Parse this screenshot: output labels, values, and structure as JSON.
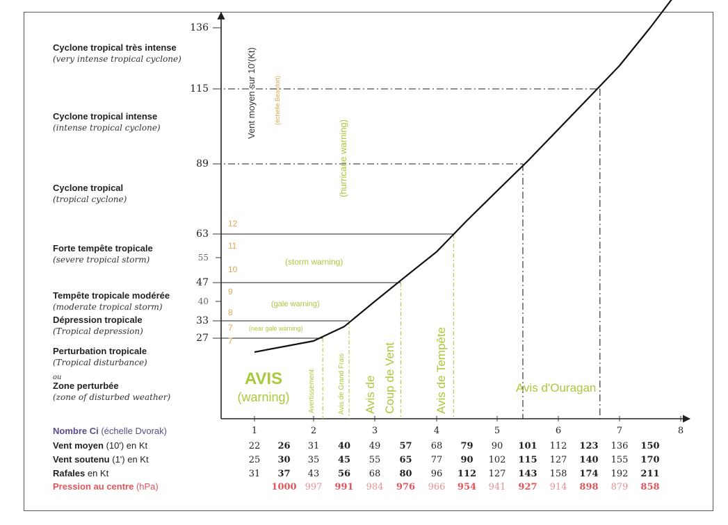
{
  "chart_data": {
    "type": "line",
    "title": "",
    "ylabel": "Vent moyen sur 10'(Kt)",
    "ylabel_secondary": "(échelle Beaufort)",
    "xlabel": "Nombre Ci (échelle Dvorak)",
    "xlim": [
      1,
      8
    ],
    "ylim": [
      22,
      136
    ],
    "x_ticks": [
      "1",
      "2",
      "3",
      "4",
      "5",
      "6",
      "7",
      "8"
    ],
    "y_ticks": [
      {
        "value": 136,
        "label": "136"
      },
      {
        "value": 115,
        "label": "115"
      },
      {
        "value": 89,
        "label": "89"
      },
      {
        "value": 63,
        "label": "63"
      },
      {
        "value": 55,
        "label": "55"
      },
      {
        "value": 47,
        "label": "47"
      },
      {
        "value": 40,
        "label": "40"
      },
      {
        "value": 33,
        "label": "33"
      },
      {
        "value": 27,
        "label": "27"
      }
    ],
    "series": [
      {
        "x": [
          1.0,
          1.5,
          2.0,
          2.5,
          3.0,
          3.5,
          4.0,
          4.5,
          5.0,
          5.5,
          6.0,
          6.5,
          7.0,
          7.5,
          8.0
        ],
        "values": [
          22,
          24,
          26,
          31,
          40,
          49,
          57,
          68,
          79,
          90,
          101,
          112,
          123,
          136,
          150
        ]
      }
    ],
    "beaufort": [
      {
        "value": 12,
        "label": "12"
      },
      {
        "value": 11,
        "label": "11"
      },
      {
        "value": 10,
        "label": "10"
      },
      {
        "value": 9,
        "label": "9"
      },
      {
        "value": 8,
        "label": "8"
      },
      {
        "value": 7,
        "label": "7"
      },
      {
        "value": 7,
        "label": "7"
      }
    ],
    "thresholds": [
      {
        "y": 27,
        "x": 2.15,
        "style": "solid"
      },
      {
        "y": 33,
        "x": 2.58,
        "style": "solid"
      },
      {
        "y": 47,
        "x": 3.42,
        "style": "solid"
      },
      {
        "y": 63,
        "x": 4.28,
        "style": "solid"
      },
      {
        "y": 89,
        "x": 5.42,
        "style": "dashdot"
      },
      {
        "y": 115,
        "x": 6.68,
        "style": "dashdot"
      }
    ],
    "categories": [
      {
        "name": "Cyclone tropical très intense",
        "english": "(very intense tropical cyclone)"
      },
      {
        "name": "Cyclone tropical intense",
        "english": "(intense tropical cyclone)"
      },
      {
        "name": "Cyclone tropical",
        "english": "(tropical cyclone)"
      },
      {
        "name": "Forte tempête tropicale",
        "english": "(severe tropical storm)"
      },
      {
        "name": "Tempête tropicale modérée",
        "english": "(moderate tropical storm)"
      },
      {
        "name": "Dépression tropicale",
        "english": "(Tropical depression)"
      },
      {
        "name": "Perturbation tropicale",
        "english": "(Tropical disturbance)"
      },
      {
        "name": "Zone perturbée",
        "english": "(zone of disturbed weather)"
      }
    ],
    "connector": "ou",
    "warning_labels": {
      "hurricane": "(hurricane warning)",
      "storm": "(storm warning)",
      "gale": "(gale warning)",
      "near_gale": "(near gale warning)"
    },
    "avis": {
      "title": "AVIS",
      "subtitle": "(warning)",
      "avertissement": "Avertissement",
      "grand_frais": "Avis de Grand Frais",
      "coup_de_vent_1": "Avis de",
      "coup_de_vent_2": "Coup de Vent",
      "tempete": "Avis de Tempête",
      "ouragan": "Avis d'Ouragan"
    },
    "table": {
      "ci_label_bold": "Nombre Ci",
      "ci_label_rest": " (échelle Dvorak)",
      "row_labels": [
        {
          "bold": "Vent moyen",
          "rest": " (10') en Kt"
        },
        {
          "bold": "Vent soutenu",
          "rest": " (1') en Kt"
        },
        {
          "bold": "Rafales",
          "rest": " en Kt"
        },
        {
          "bold": "Pression au centre",
          "rest": " (hPa)"
        }
      ],
      "rows": [
        [
          "22",
          "26",
          "31",
          "40",
          "49",
          "57",
          "68",
          "79",
          "90",
          "101",
          "112",
          "123",
          "136",
          "150"
        ],
        [
          "25",
          "30",
          "35",
          "45",
          "55",
          "65",
          "77",
          "90",
          "102",
          "115",
          "127",
          "140",
          "155",
          "170"
        ],
        [
          "31",
          "37",
          "43",
          "56",
          "68",
          "80",
          "96",
          "112",
          "127",
          "143",
          "158",
          "174",
          "192",
          "211"
        ],
        [
          "",
          "1000",
          "997",
          "991",
          "984",
          "976",
          "966",
          "954",
          "941",
          "927",
          "914",
          "898",
          "879",
          "858"
        ]
      ]
    },
    "colors": {
      "green": "#a8c93a",
      "beaufort": "#e0a850",
      "pressure": "#e0555a",
      "pressure_light": "#e69090",
      "ci_label": "#5a4a8a",
      "grey": "#888888"
    }
  }
}
